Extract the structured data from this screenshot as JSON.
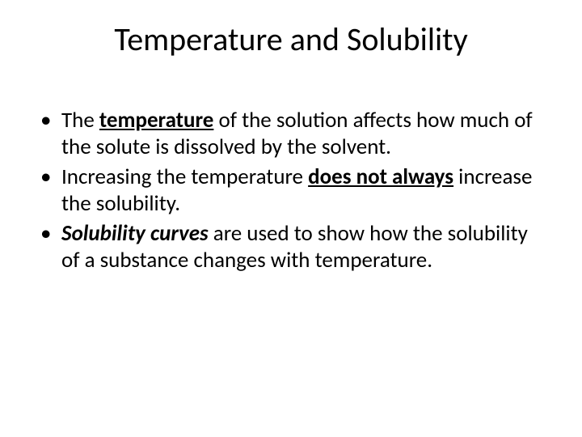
{
  "slide": {
    "title": "Temperature and Solubility",
    "bullets": [
      {
        "segments": [
          {
            "text": "The ",
            "b": false,
            "u": false,
            "i": false
          },
          {
            "text": "temperature",
            "b": true,
            "u": true,
            "i": false
          },
          {
            "text": " of the solution affects how much of the solute is dissolved by the solvent.",
            "b": false,
            "u": false,
            "i": false
          }
        ]
      },
      {
        "segments": [
          {
            "text": "Increasing the temperature ",
            "b": false,
            "u": false,
            "i": false
          },
          {
            "text": "does not always",
            "b": true,
            "u": true,
            "i": false
          },
          {
            "text": " increase the solubility.",
            "b": false,
            "u": false,
            "i": false
          }
        ]
      },
      {
        "segments": [
          {
            "text": "Solubility curves",
            "b": true,
            "u": false,
            "i": true
          },
          {
            "text": " are used to show how the solubility of a substance changes with temperature.",
            "b": false,
            "u": false,
            "i": false
          }
        ]
      }
    ],
    "colors": {
      "background": "#ffffff",
      "text": "#000000"
    },
    "typography": {
      "title_fontsize": 40,
      "body_fontsize": 27,
      "font_family": "Calibri"
    }
  }
}
